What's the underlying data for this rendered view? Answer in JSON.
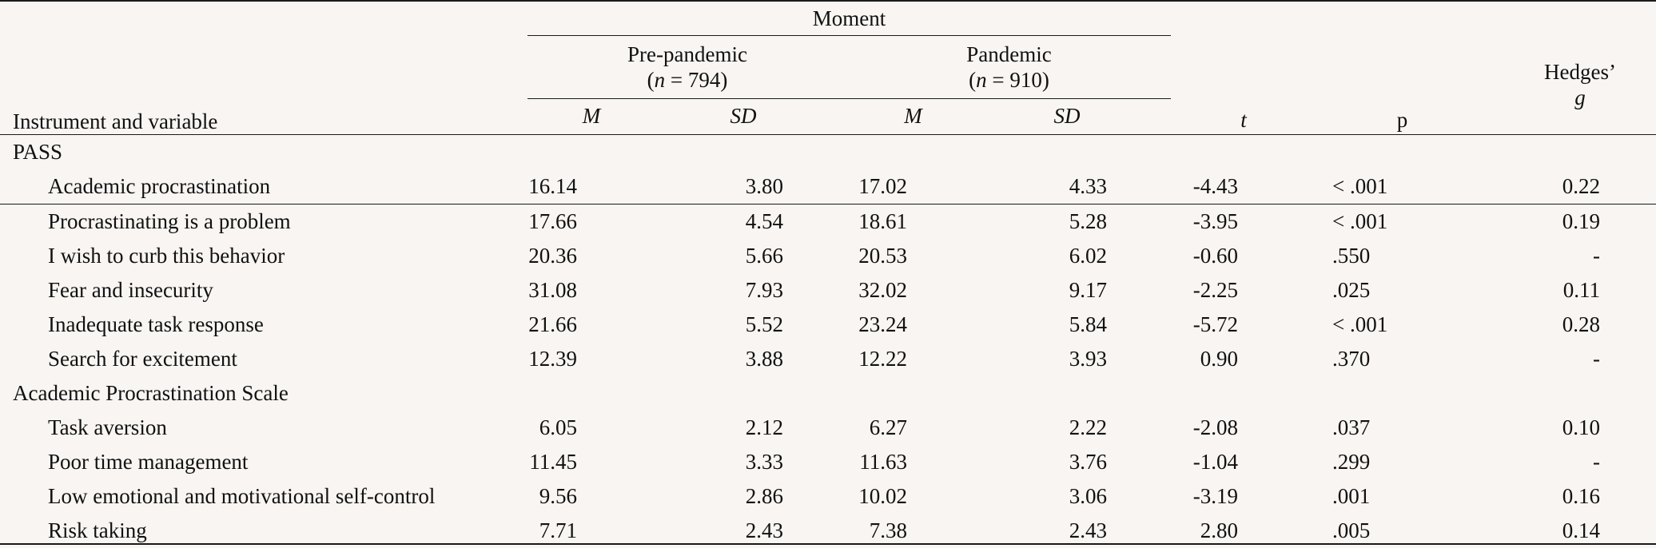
{
  "table": {
    "header": {
      "moment": "Moment",
      "instrument_variable": "Instrument and variable",
      "pre_pandemic": {
        "title": "Pre-pandemic",
        "n_italic": "n",
        "n_rest": " = 794"
      },
      "pandemic": {
        "title": "Pandemic",
        "n_italic": "n",
        "n_rest": " = 910"
      },
      "m": "M",
      "sd": "SD",
      "t": "t",
      "p": "p",
      "hedges": "Hedges’",
      "g": "g"
    },
    "groups": [
      {
        "name": "PASS",
        "rows": [
          {
            "label": "Academic procrastination",
            "m1": "16.14",
            "sd1": "3.80",
            "m2": "17.02",
            "sd2": "4.33",
            "t": "-4.43",
            "p": "< .001",
            "g": "0.22"
          },
          {
            "label": "Procrastinating is a problem",
            "m1": "17.66",
            "sd1": "4.54",
            "m2": "18.61",
            "sd2": "5.28",
            "t": "-3.95",
            "p": "< .001",
            "g": "0.19"
          },
          {
            "label": "I wish to curb this behavior",
            "m1": "20.36",
            "sd1": "5.66",
            "m2": "20.53",
            "sd2": "6.02",
            "t": "-0.60",
            "p": ".550",
            "g": "-"
          },
          {
            "label": "Fear and insecurity",
            "m1": "31.08",
            "sd1": "7.93",
            "m2": "32.02",
            "sd2": "9.17",
            "t": "-2.25",
            "p": ".025",
            "g": "0.11"
          },
          {
            "label": "Inadequate task response",
            "m1": "21.66",
            "sd1": "5.52",
            "m2": "23.24",
            "sd2": "5.84",
            "t": "-5.72",
            "p": "< .001",
            "g": "0.28"
          },
          {
            "label": "Search for excitement",
            "m1": "12.39",
            "sd1": "3.88",
            "m2": "12.22",
            "sd2": "3.93",
            "t": "0.90",
            "p": ".370",
            "g": "-"
          }
        ]
      },
      {
        "name": "Academic Procrastination Scale",
        "rows": [
          {
            "label": "Task aversion",
            "m1": "6.05",
            "sd1": "2.12",
            "m2": "6.27",
            "sd2": "2.22",
            "t": "-2.08",
            "p": ".037",
            "g": "0.10"
          },
          {
            "label": "Poor time management",
            "m1": "11.45",
            "sd1": "3.33",
            "m2": "11.63",
            "sd2": "3.76",
            "t": "-1.04",
            "p": ".299",
            "g": "-"
          },
          {
            "label": "Low emotional and motivational self-control",
            "m1": "9.56",
            "sd1": "2.86",
            "m2": "10.02",
            "sd2": "3.06",
            "t": "-3.19",
            "p": ".001",
            "g": "0.16"
          },
          {
            "label": "Risk taking",
            "m1": "7.71",
            "sd1": "2.43",
            "m2": "7.38",
            "sd2": "2.43",
            "t": "2.80",
            "p": ".005",
            "g": "0.14"
          }
        ]
      }
    ]
  }
}
